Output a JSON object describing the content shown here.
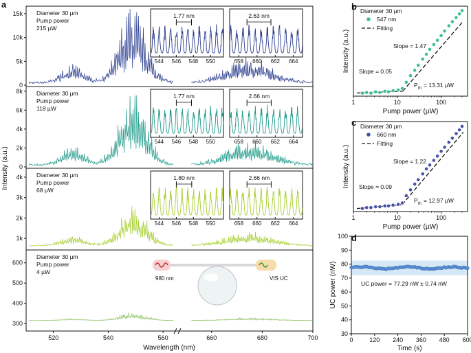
{
  "panel_labels": [
    "a",
    "b",
    "c",
    "d"
  ],
  "chart_data": [
    {
      "id": "a",
      "type": "line",
      "xlabel": "Wavelength (nm)",
      "ylabel": "Intensity (a.u.)",
      "x_break": [
        565,
        650
      ],
      "x_ticks": [
        "520",
        "540",
        "560",
        "660",
        "680",
        "700"
      ],
      "subplots": [
        {
          "id": "a1",
          "sample": "Diameter 30 µm",
          "power_label": "Pump power",
          "power_value": "215 µW",
          "color": "#2b3d8f",
          "y_ticks": [
            "0",
            "5k",
            "10k",
            "15k"
          ],
          "ylim": [
            0,
            16000
          ],
          "series_peak": 15500,
          "base": 500,
          "insets": [
            {
              "label": "1.77 nm",
              "ticks": [
                "544",
                "546",
                "548",
                "550"
              ],
              "range": [
                543,
                551.5
              ],
              "mark": [
                546,
                547.77
              ]
            },
            {
              "label": "2.63 nm",
              "ticks": [
                "658",
                "660",
                "662",
                "664"
              ],
              "range": [
                657,
                665
              ],
              "mark": [
                658.9,
                661.53
              ]
            }
          ]
        },
        {
          "id": "a2",
          "sample": "Diameter 30 µm",
          "power_label": "Pump power",
          "power_value": "118 µW",
          "color": "#1f9a8a",
          "y_ticks": [
            "0",
            "2k",
            "4k",
            "6k",
            "8k"
          ],
          "ylim": [
            0,
            8200
          ],
          "series_peak": 7800,
          "base": 200,
          "insets": [
            {
              "label": "1.77 nm",
              "ticks": [
                "544",
                "546",
                "548",
                "550"
              ],
              "range": [
                543,
                551.5
              ],
              "mark": [
                546,
                547.77
              ]
            },
            {
              "label": "2.66 nm",
              "ticks": [
                "658",
                "660",
                "662",
                "664"
              ],
              "range": [
                657,
                665
              ],
              "mark": [
                658.9,
                661.56
              ]
            }
          ]
        },
        {
          "id": "a3",
          "sample": "Diameter 30 µm",
          "power_label": "Pump power",
          "power_value": "68 µW",
          "color": "#a5cf2d",
          "y_ticks": [
            "1k",
            "2k",
            "3k",
            "4k"
          ],
          "ylim": [
            500,
            4300
          ],
          "series_peak": 2600,
          "base": 650,
          "insets": [
            {
              "label": "1.80 nm",
              "ticks": [
                "544",
                "546",
                "548",
                "550"
              ],
              "range": [
                543,
                551.5
              ],
              "mark": [
                546,
                547.8
              ]
            },
            {
              "label": "2.66 nm",
              "ticks": [
                "658",
                "660",
                "662",
                "664"
              ],
              "range": [
                657,
                665
              ],
              "mark": [
                658.9,
                661.56
              ]
            }
          ]
        },
        {
          "id": "a4",
          "sample": "Diameter 30 µm",
          "power_label": "Pump power",
          "power_value": "4 µW",
          "color": "#8cbf5e",
          "y_ticks": [
            "300",
            "400",
            "500",
            "600"
          ],
          "ylim": [
            270,
            650
          ],
          "series_peak": 355,
          "base": 315,
          "schematic": {
            "left_label": "980 nm",
            "right_label": "VIS UC"
          },
          "insets": []
        }
      ]
    },
    {
      "id": "b",
      "type": "scatter",
      "xlabel": "Pump power (µW)",
      "ylabel": "Intensity (a.u.)",
      "x_scale": "log",
      "y_scale": "log",
      "x_ticks": [
        "1",
        "10",
        "100"
      ],
      "legend": {
        "title": "Diameter 30 µm",
        "series": "547 nm",
        "fit": "Fitting"
      },
      "annotations": {
        "slope_low": "Slope = 0.05",
        "slope_high": "Slope = 1.47",
        "threshold_prefix": "P",
        "threshold_sub": "th",
        "threshold_value": "= 13.31 µW"
      },
      "marker_color": "#3dbf8f",
      "x": [
        1.6,
        2.0,
        2.5,
        3.2,
        4.0,
        5.2,
        6.3,
        8.0,
        10.5,
        13.0,
        16.0,
        20.0,
        25.0,
        30.0,
        38.0,
        46.0,
        55.0,
        68.0,
        82.0,
        100.0,
        120.0,
        150.0,
        180.0,
        220.0,
        260.0,
        300.0
      ],
      "y": [
        0.22,
        0.23,
        0.22,
        0.24,
        0.23,
        0.25,
        0.24,
        0.26,
        0.27,
        0.3,
        0.45,
        0.7,
        1.0,
        1.4,
        2.1,
        2.9,
        4.0,
        5.5,
        7.3,
        10.0,
        13.5,
        19.0,
        25.0,
        33.0,
        42.0,
        52.0
      ],
      "fit_low": {
        "x": [
          1.2,
          13.31
        ],
        "y": [
          0.222,
          0.25
        ]
      },
      "fit_high": {
        "x": [
          13.31,
          320.0
        ],
        "y": [
          0.25,
          26.0
        ]
      }
    },
    {
      "id": "c",
      "type": "scatter",
      "xlabel": "Pump power (µW)",
      "ylabel": "Intensity (a.u.)",
      "x_scale": "log",
      "y_scale": "log",
      "x_ticks": [
        "1",
        "10",
        "100"
      ],
      "legend": {
        "title": "Diameter 30 µm",
        "series": "660 nm",
        "fit": "Fitting"
      },
      "annotations": {
        "slope_low": "Slope = 0.09",
        "slope_high": "Slope = 1.22",
        "threshold_prefix": "P",
        "threshold_sub": "th",
        "threshold_value": "= 12.97 µW"
      },
      "marker_color": "#4652a8",
      "x": [
        1.6,
        2.0,
        2.5,
        3.2,
        4.0,
        5.2,
        6.3,
        8.0,
        10.5,
        13.0,
        16.0,
        20.0,
        25.0,
        30.0,
        38.0,
        46.0,
        55.0,
        68.0,
        82.0,
        100.0,
        120.0,
        150.0,
        180.0,
        220.0,
        260.0,
        300.0
      ],
      "y": [
        0.2,
        0.21,
        0.21,
        0.22,
        0.22,
        0.23,
        0.23,
        0.24,
        0.25,
        0.27,
        0.4,
        0.55,
        0.75,
        0.95,
        1.3,
        1.7,
        2.1,
        2.7,
        3.4,
        4.4,
        5.5,
        7.2,
        9.0,
        11.5,
        14.0,
        17.0
      ],
      "fit_low": {
        "x": [
          1.2,
          12.97
        ],
        "y": [
          0.2,
          0.248
        ]
      },
      "fit_high": {
        "x": [
          12.97,
          320.0
        ],
        "y": [
          0.248,
          12.4
        ]
      }
    },
    {
      "id": "d",
      "type": "scatter",
      "xlabel": "Time (s)",
      "ylabel": "UC power (nW)",
      "x_ticks": [
        "0",
        "120",
        "240",
        "360",
        "480",
        "600"
      ],
      "y_ticks": [
        "30",
        "40",
        "50",
        "60",
        "70",
        "80",
        "90",
        "100"
      ],
      "xlim": [
        0,
        600
      ],
      "ylim": [
        30,
        100
      ],
      "mean": 77.29,
      "std": 0.74,
      "band": [
        72.0,
        82.5
      ],
      "annotation": "UC power = 77.29 nW ± 0.74 nW",
      "marker_color": "#5b8fd6",
      "band_color": "#d6e8f6"
    }
  ]
}
